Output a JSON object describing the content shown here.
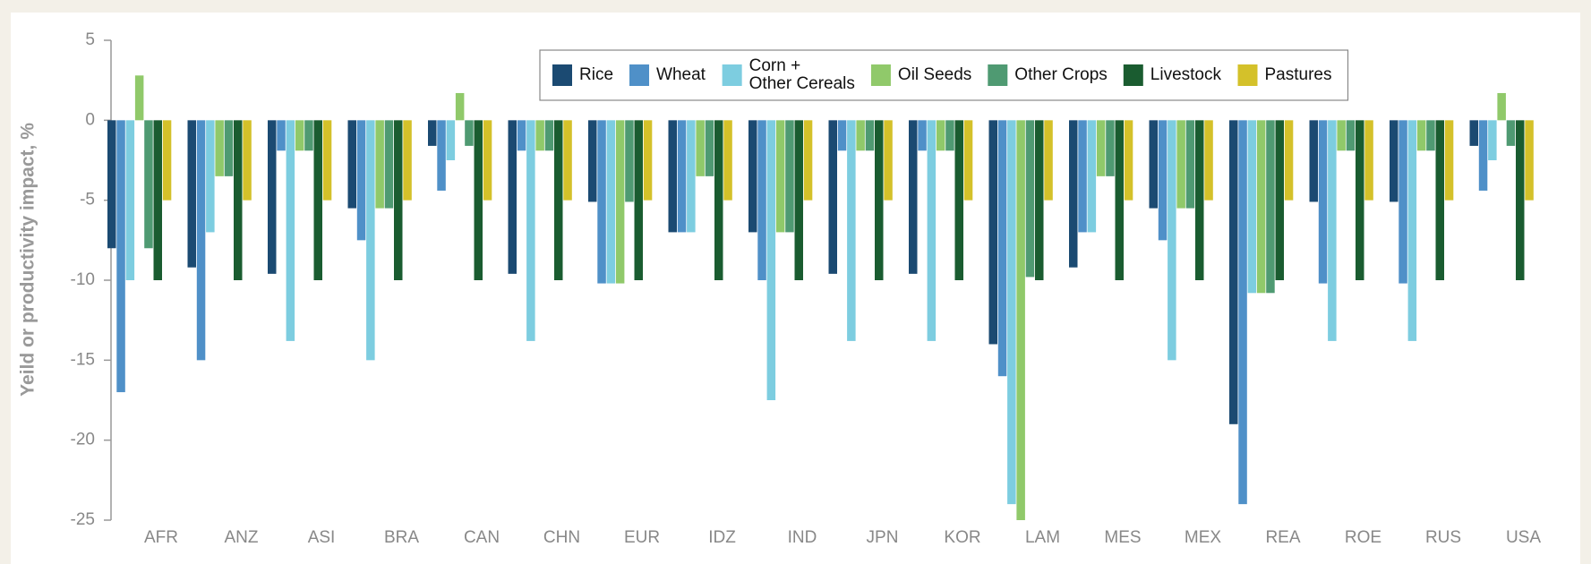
{
  "chart_data": {
    "type": "bar",
    "ylabel": "Yeild or productivity impact, %",
    "categories": [
      "AFR",
      "ANZ",
      "ASI",
      "BRA",
      "CAN",
      "CHN",
      "EUR",
      "IDZ",
      "IND",
      "JPN",
      "KOR",
      "LAM",
      "MES",
      "MEX",
      "REA",
      "ROE",
      "RUS",
      "USA"
    ],
    "series": [
      {
        "name": "Rice",
        "color": "#1b4a72",
        "values": [
          -8,
          -9.2,
          -9.6,
          -5.5,
          -1.6,
          -9.6,
          -5.1,
          -7,
          -7,
          -9.6,
          -9.6,
          -14,
          -9.2,
          -5.5,
          -19,
          -5.1,
          -5.1,
          -1.6
        ]
      },
      {
        "name": "Wheat",
        "color": "#4f90c8",
        "values": [
          -17,
          -15,
          -1.9,
          -7.5,
          -4.4,
          -1.9,
          -10.2,
          -7,
          -10,
          -1.9,
          -1.9,
          -16,
          -7,
          -7.5,
          -24,
          -10.2,
          -10.2,
          -4.4
        ]
      },
      {
        "name": "Corn +\nOther Cereals",
        "color": "#7dcde0",
        "values": [
          -10,
          -7,
          -13.8,
          -15,
          -2.5,
          -13.8,
          -10.2,
          -7,
          -17.5,
          -13.8,
          -13.8,
          -24,
          -7,
          -15,
          -10.8,
          -13.8,
          -13.8,
          -2.5
        ]
      },
      {
        "name": "Oil Seeds",
        "color": "#90c96a",
        "values": [
          2.8,
          -3.5,
          -1.9,
          -5.5,
          1.7,
          -1.9,
          -10.2,
          -3.5,
          -7,
          -1.9,
          -1.9,
          -25,
          -3.5,
          -5.5,
          -10.8,
          -1.9,
          -1.9,
          1.7
        ]
      },
      {
        "name": "Other Crops",
        "color": "#4f9a72",
        "values": [
          -8,
          -3.5,
          -1.9,
          -5.5,
          -1.6,
          -1.9,
          -5.1,
          -3.5,
          -7,
          -1.9,
          -1.9,
          -9.8,
          -3.5,
          -5.5,
          -10.8,
          -1.9,
          -1.9,
          -1.6
        ]
      },
      {
        "name": "Livestock",
        "color": "#1a5c30",
        "values": [
          -10,
          -10,
          -10,
          -10,
          -10,
          -10,
          -10,
          -10,
          -10,
          -10,
          -10,
          -10,
          -10,
          -10,
          -10,
          -10,
          -10,
          -10
        ]
      },
      {
        "name": "Pastures",
        "color": "#d4c12a",
        "values": [
          -5,
          -5,
          -5,
          -5,
          -5,
          -5,
          -5,
          -5,
          -5,
          -5,
          -5,
          -5,
          -5,
          -5,
          -5,
          -5,
          -5,
          -5
        ]
      }
    ],
    "ylim": [
      -25,
      5
    ],
    "yticks": [
      5,
      0,
      -5,
      -10,
      -15,
      -20,
      -25
    ],
    "grid": false,
    "legend": "upper center"
  }
}
